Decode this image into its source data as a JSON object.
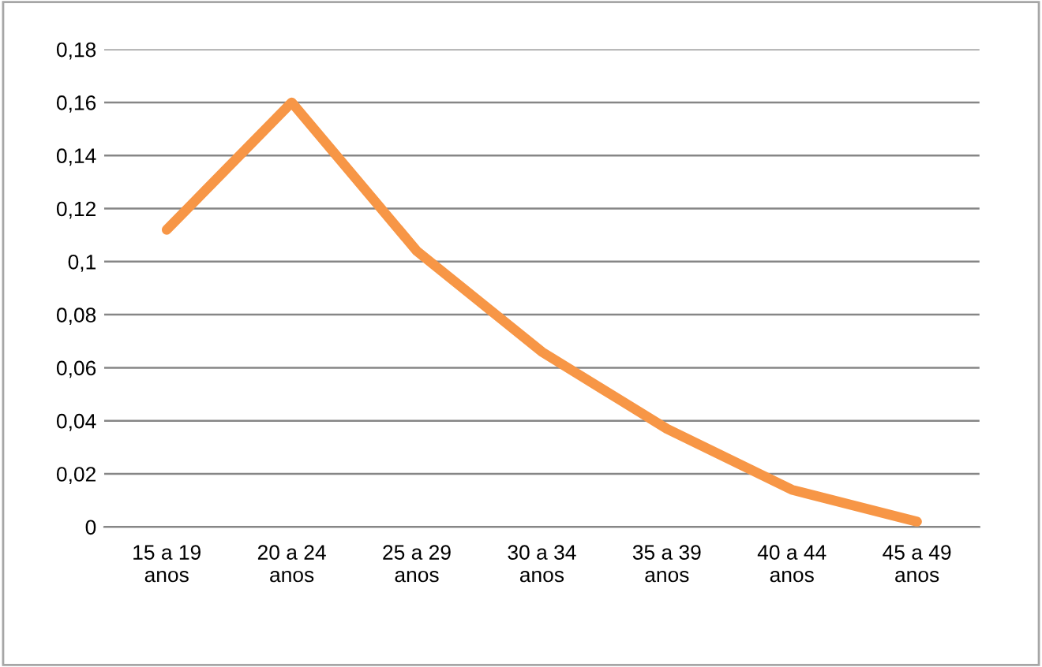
{
  "chart_data": {
    "type": "line",
    "categories": [
      "15 a 19\nanos",
      "20 a 24\nanos",
      "25 a 29\nanos",
      "30 a 34\nanos",
      "35 a 39\nanos",
      "40 a 44\nanos",
      "45 a 49\nanos"
    ],
    "series": [
      {
        "color": "#f79646",
        "values": [
          0.112,
          0.16,
          0.104,
          0.066,
          0.037,
          0.014,
          0.002
        ]
      }
    ],
    "ylim": [
      0,
      0.18
    ],
    "yticks": [
      {
        "value": 0,
        "label": "0"
      },
      {
        "value": 0.02,
        "label": "0,02"
      },
      {
        "value": 0.04,
        "label": "0,04"
      },
      {
        "value": 0.06,
        "label": "0,06"
      },
      {
        "value": 0.08,
        "label": "0,08"
      },
      {
        "value": 0.1,
        "label": "0,1"
      },
      {
        "value": 0.12,
        "label": "0,12"
      },
      {
        "value": 0.14,
        "label": "0,14"
      },
      {
        "value": 0.16,
        "label": "0,16"
      },
      {
        "value": 0.18,
        "label": "0,18"
      }
    ],
    "grid": "y",
    "line_style": "solid"
  }
}
